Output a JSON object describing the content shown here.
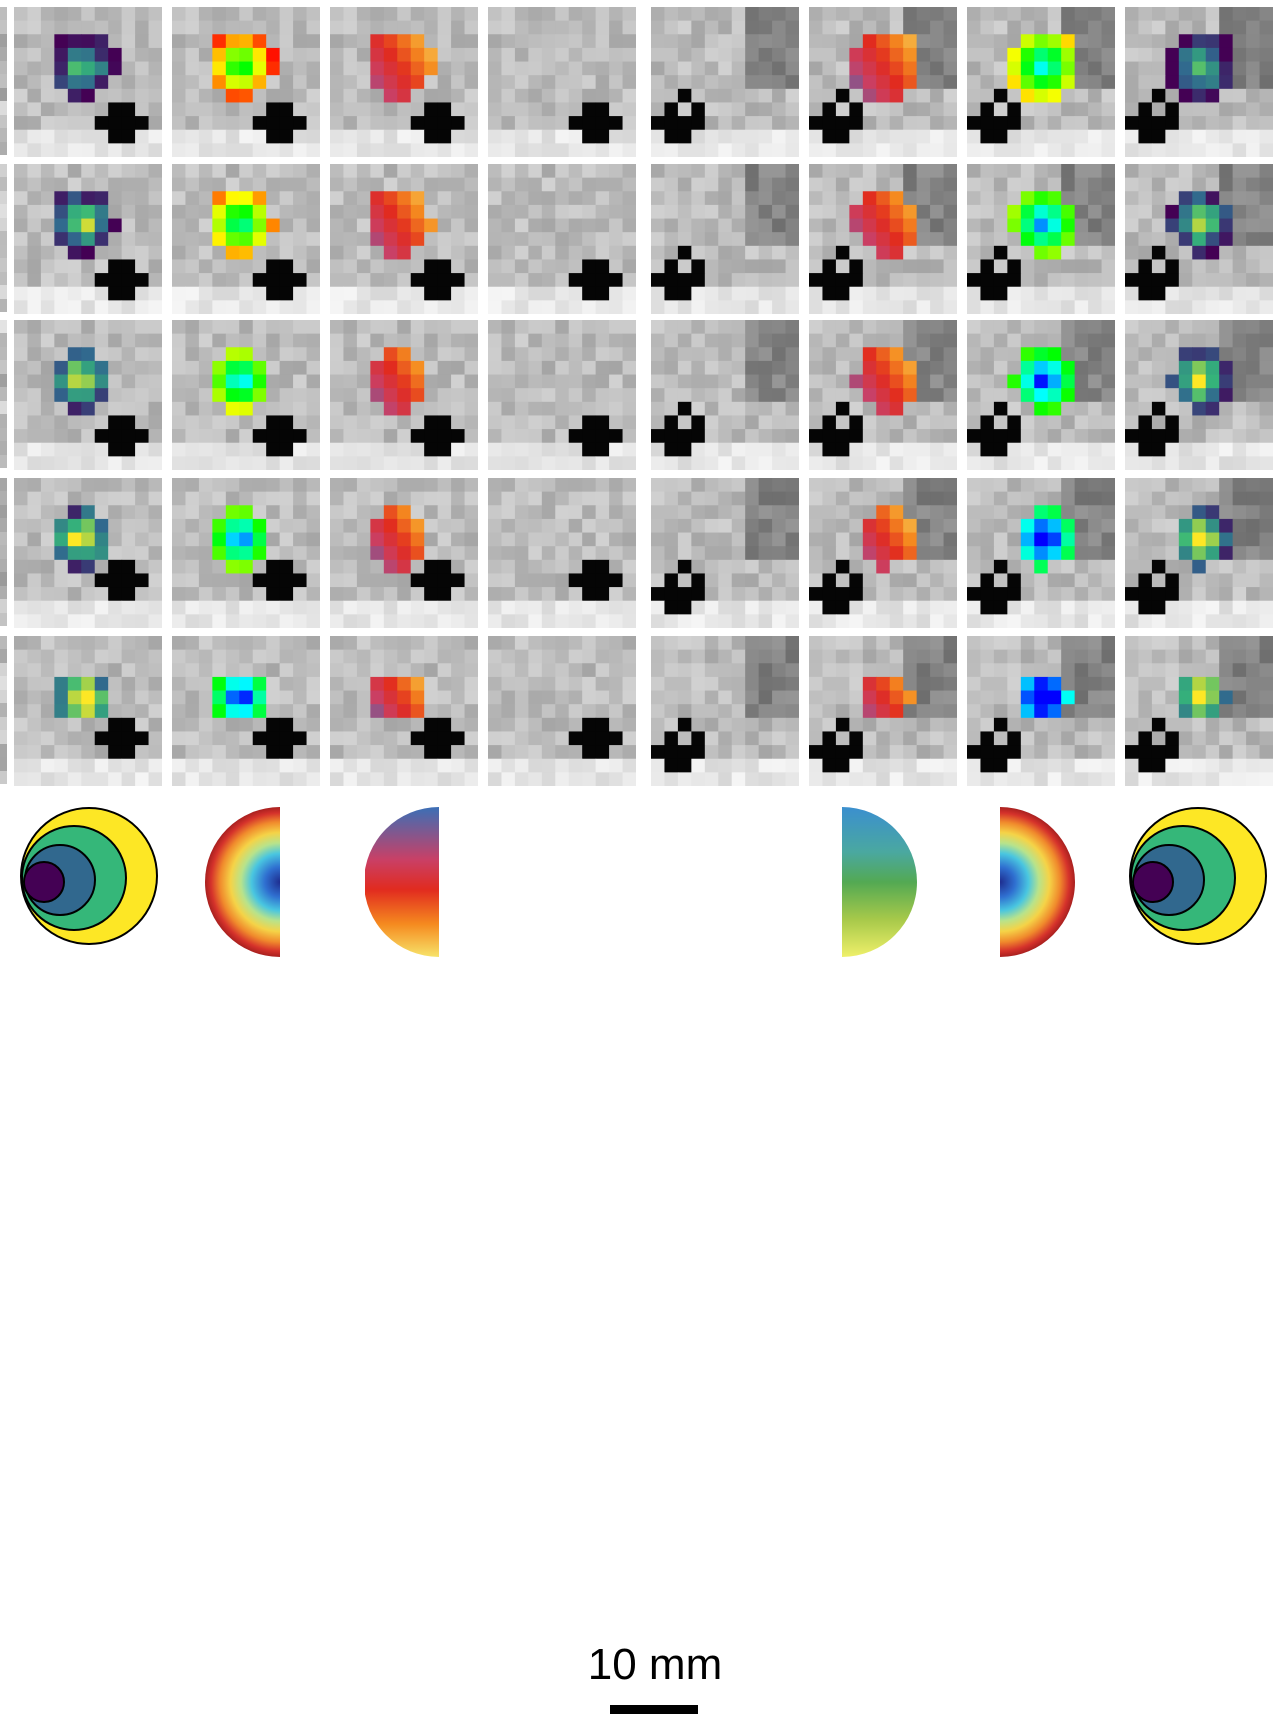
{
  "figure": {
    "rows": 5,
    "columns": 8,
    "panel_groups": [
      {
        "name": "left",
        "columns": [
          "diameter-map",
          "eccentricity-map",
          "polar-angle-map",
          "anatomy"
        ]
      },
      {
        "name": "right",
        "columns": [
          "anatomy",
          "polar-angle-map",
          "eccentricity-map",
          "diameter-map"
        ]
      }
    ],
    "colormaps": {
      "diameter-map": [
        "#440154",
        "#31688e",
        "#35b779",
        "#fde725"
      ],
      "eccentricity-map": [
        "#ff0000",
        "#ffff00",
        "#00ff00",
        "#00ffff",
        "#0000ff"
      ],
      "polar-angle-map": [
        "#3b6fb6",
        "#c94066",
        "#e12b1f",
        "#f58a1f",
        "#f7e36a"
      ]
    }
  },
  "scalebar": {
    "label": "10 mm"
  },
  "legend": {
    "left": [
      "diameter-key",
      "eccentricity-key",
      "polar-angle-key"
    ],
    "right": [
      "polar-angle-key",
      "eccentricity-key",
      "diameter-key"
    ]
  }
}
